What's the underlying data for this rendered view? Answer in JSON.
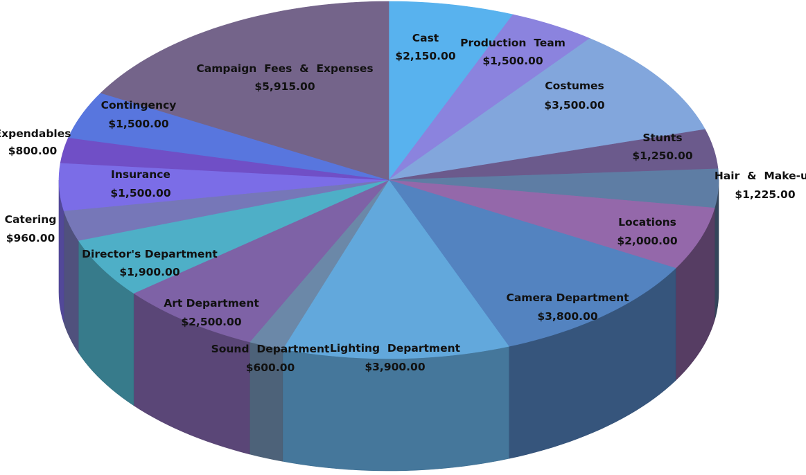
{
  "chart_data": {
    "type": "pie",
    "style": "3d-tilted",
    "title": "",
    "start": "top, clockwise",
    "slices": [
      {
        "label": "Cast",
        "value": 2150,
        "value_text": "$2,150.00",
        "color": "#58B2EE"
      },
      {
        "label": "Production  Team",
        "value": 1500,
        "value_text": "$1,500.00",
        "color": "#8B83DE"
      },
      {
        "label": "Costumes",
        "value": 3500,
        "value_text": "$3,500.00",
        "color": "#82A6DC"
      },
      {
        "label": "Stunts",
        "value": 1250,
        "value_text": "$1,250.00",
        "color": "#6B5A8C"
      },
      {
        "label": "Hair  &  Make-up",
        "value": 1225,
        "value_text": "$1,225.00",
        "color": "#5E7DA4"
      },
      {
        "label": "Locations",
        "value": 2000,
        "value_text": "$2,000.00",
        "color": "#9468AA"
      },
      {
        "label": "Camera Department",
        "value": 3800,
        "value_text": "$3,800.00",
        "color": "#5383C0"
      },
      {
        "label": "Lighting  Department",
        "value": 3900,
        "value_text": "$3,900.00",
        "color": "#62A8DC"
      },
      {
        "label": "Sound  Department",
        "value": 600,
        "value_text": "$600.00",
        "color": "#6B88A8"
      },
      {
        "label": "Art Department",
        "value": 2500,
        "value_text": "$2,500.00",
        "color": "#7E62A6"
      },
      {
        "label": "Director's Department",
        "value": 1900,
        "value_text": "$1,900.00",
        "color": "#4EAFC7"
      },
      {
        "label": "Catering",
        "value": 960,
        "value_text": "$960.00",
        "color": "#7677B8"
      },
      {
        "label": "Insurance",
        "value": 1500,
        "value_text": "$1,500.00",
        "color": "#7B6DE7"
      },
      {
        "label": "Expendables",
        "value": 800,
        "value_text": "$800.00",
        "color": "#704FC6"
      },
      {
        "label": "Contingency",
        "value": 1500,
        "value_text": "$1,500.00",
        "color": "#5876DE"
      },
      {
        "label": "Campaign  Fees  &  Expenses",
        "value": 5915,
        "value_text": "$5,915.00",
        "color": "#74648A"
      }
    ]
  }
}
